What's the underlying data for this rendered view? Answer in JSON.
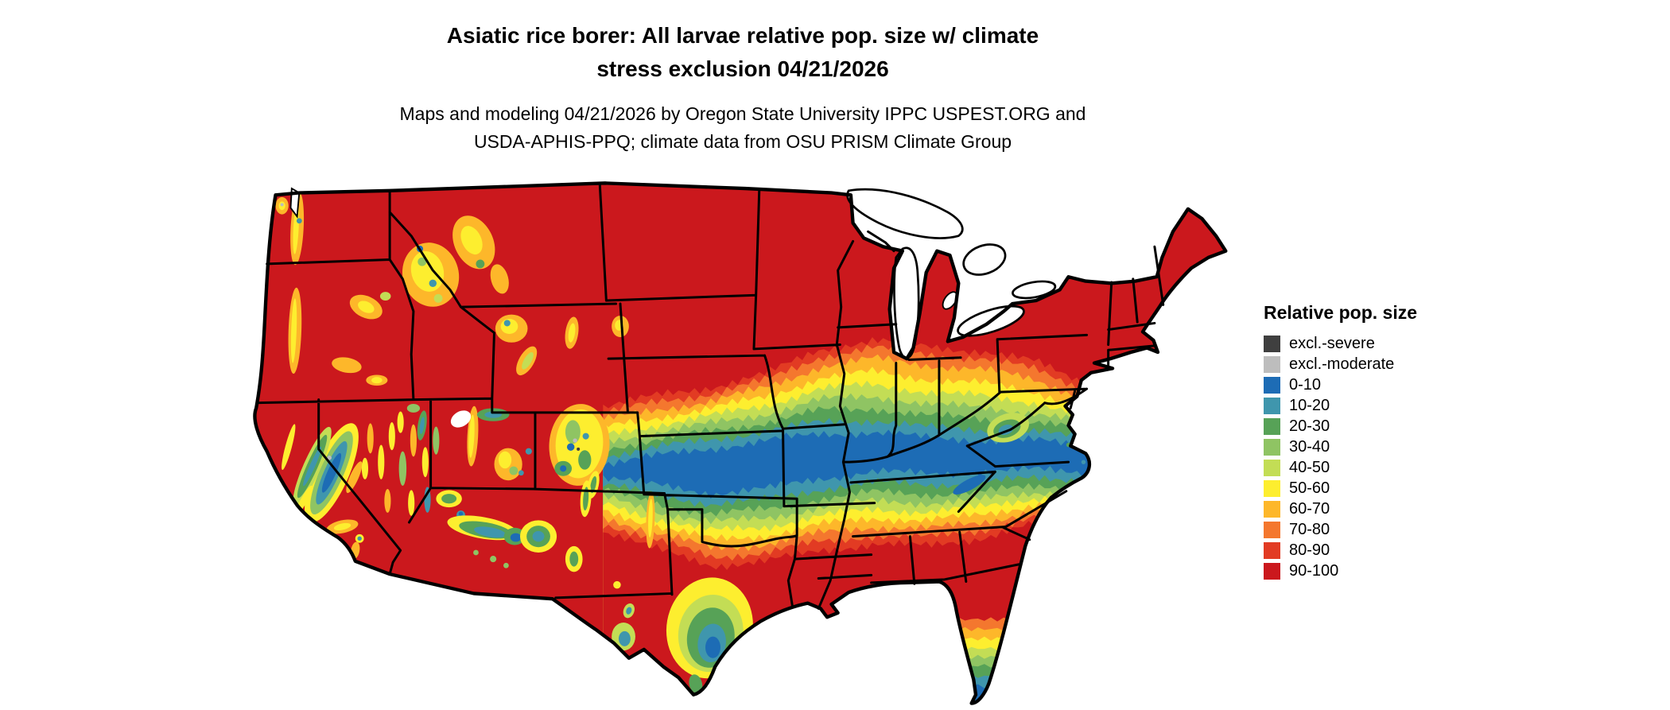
{
  "title": {
    "line1": "Asiatic rice borer: All larvae relative pop. size w/ climate",
    "line2": "stress exclusion 04/21/2026"
  },
  "subtitle": {
    "line1": "Maps and modeling 04/21/2026 by Oregon State University IPPC USPEST.ORG and",
    "line2": "USDA-APHIS-PPQ; climate data from OSU PRISM Climate Group"
  },
  "legend": {
    "title": "Relative pop. size",
    "entries": [
      {
        "label": "excl.-severe",
        "color": "#3f3f3f"
      },
      {
        "label": "excl.-moderate",
        "color": "#bdbdbd"
      },
      {
        "label": "0-10",
        "color": "#1d6cb5"
      },
      {
        "label": "10-20",
        "color": "#3f96ad"
      },
      {
        "label": "20-30",
        "color": "#57a257"
      },
      {
        "label": "30-40",
        "color": "#8fc463"
      },
      {
        "label": "40-50",
        "color": "#c3dd55"
      },
      {
        "label": "50-60",
        "color": "#fdee2f"
      },
      {
        "label": "60-70",
        "color": "#fdb72a"
      },
      {
        "label": "70-80",
        "color": "#f4772e"
      },
      {
        "label": "80-90",
        "color": "#e23b23"
      },
      {
        "label": "90-100",
        "color": "#cb181d"
      }
    ]
  },
  "map": {
    "background": "#ffffff",
    "water_color": "#ffffff",
    "boundary_color": "#000000"
  }
}
